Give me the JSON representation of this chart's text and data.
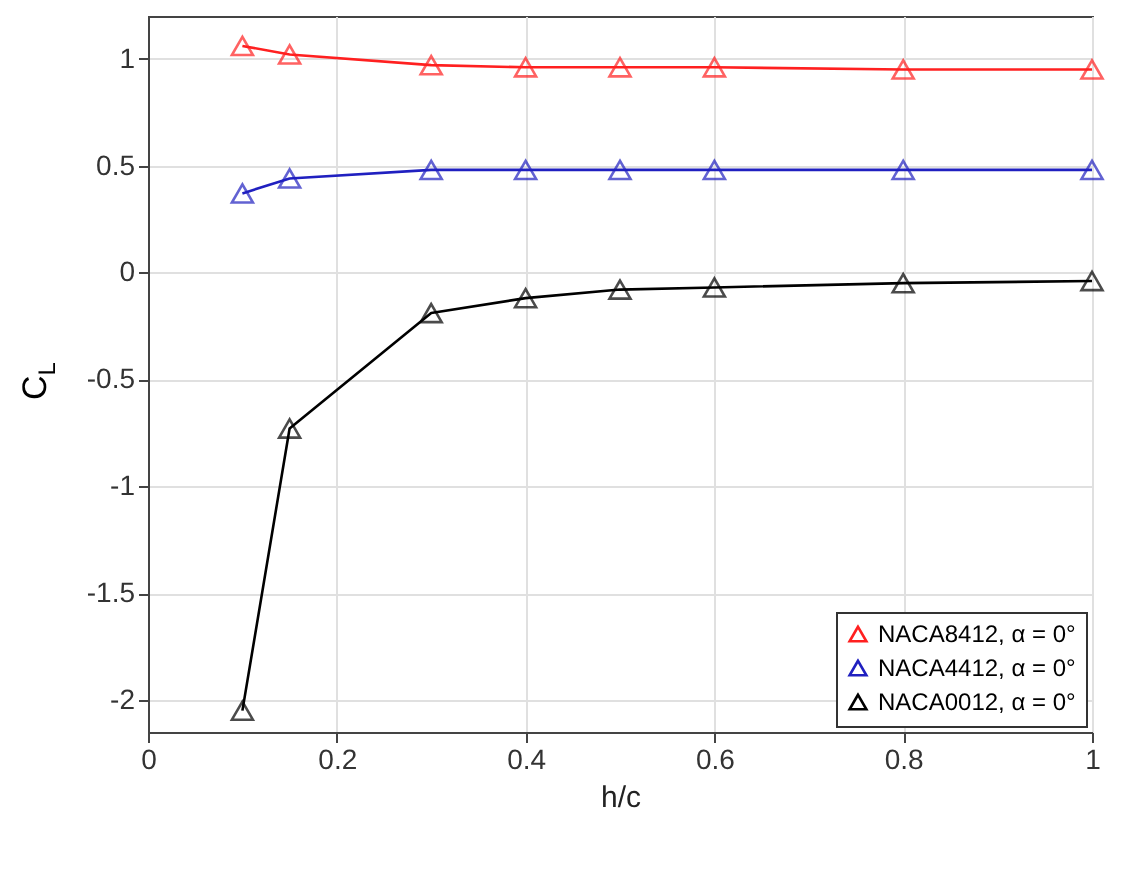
{
  "chart_data": {
    "type": "line",
    "xlabel": "h/c",
    "ylabel": "C$_{L}$",
    "x": [
      0.1,
      0.15,
      0.3,
      0.4,
      0.5,
      0.6,
      0.8,
      1
    ],
    "series": [
      {
        "name": "NACA8412, α = 0°",
        "color": "#ff2020",
        "values": [
          1.06,
          1.02,
          0.97,
          0.96,
          0.96,
          0.96,
          0.95,
          0.95
        ]
      },
      {
        "name": "NACA4412, α = 0°",
        "color": "#2020c0",
        "values": [
          0.37,
          0.44,
          0.48,
          0.48,
          0.48,
          0.48,
          0.48,
          0.48
        ]
      },
      {
        "name": "NACA0012, α = 0°",
        "color": "#000000",
        "values": [
          -2.05,
          -0.73,
          -0.19,
          -0.12,
          -0.08,
          -0.07,
          -0.05,
          -0.04
        ]
      }
    ],
    "xlim": [
      0,
      1
    ],
    "xticks": [
      0,
      0.2,
      0.4,
      0.6,
      0.8,
      1
    ],
    "ylim": [
      -2.15,
      1.2
    ],
    "yticks": [
      -2,
      -1.5,
      -1,
      -0.5,
      0,
      0.5,
      1
    ],
    "grid": true,
    "legend": "bottom right",
    "marker": "triangle",
    "line_style": "solid"
  }
}
